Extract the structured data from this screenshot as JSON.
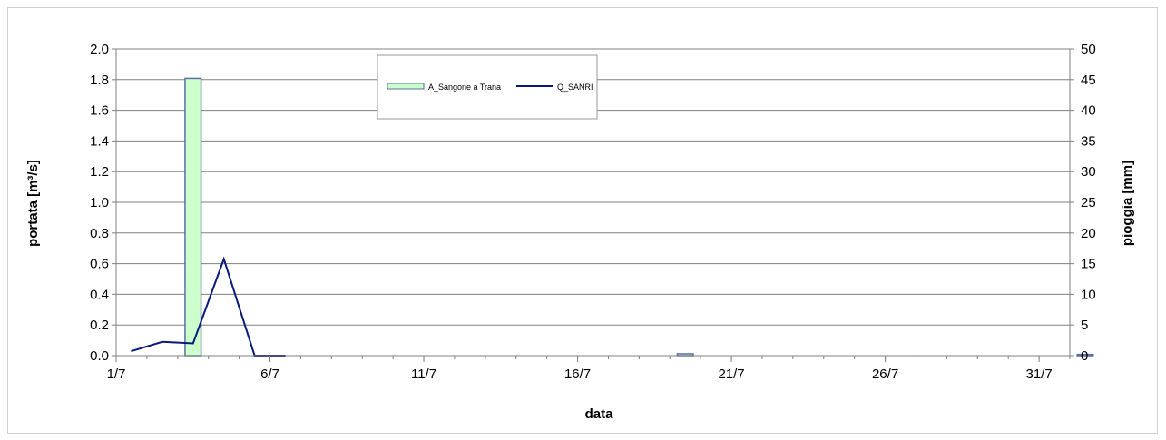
{
  "chart_data": {
    "type": "bar+line",
    "x_ticks": [
      "1/7",
      "6/7",
      "11/7",
      "16/7",
      "21/7",
      "26/7",
      "31/7"
    ],
    "xlabel": "data",
    "ylabel_left": "portata [m³/s]",
    "ylabel_right": "pioggia [mm]",
    "ylim_left": [
      0,
      2.0
    ],
    "ylim_right": [
      0,
      50
    ],
    "y_ticks_left": [
      "0.0",
      "0.2",
      "0.4",
      "0.6",
      "0.8",
      "1.0",
      "1.2",
      "1.4",
      "1.6",
      "1.8",
      "2.0"
    ],
    "y_ticks_right": [
      "0",
      "5",
      "10",
      "15",
      "20",
      "25",
      "30",
      "35",
      "40",
      "45",
      "50"
    ],
    "x_domain_days": [
      1,
      32
    ],
    "bar_series": {
      "name": "A_Sangone a Trana",
      "axis": "right",
      "color": "#ccffcc",
      "edge": "#5a6ea0",
      "points": [
        {
          "day": 3.5,
          "value": 45.2
        },
        {
          "day": 19.5,
          "value": 0.3
        },
        {
          "day": 32.5,
          "value": 0.2
        }
      ]
    },
    "line_series": {
      "name": "Q_SANRI",
      "axis": "left",
      "color": "#0a1a7a",
      "points": [
        {
          "day": 1.5,
          "value": 0.03
        },
        {
          "day": 2.5,
          "value": 0.09
        },
        {
          "day": 3.5,
          "value": 0.08
        },
        {
          "day": 4.5,
          "value": 0.63
        },
        {
          "day": 5.5,
          "value": 0.0
        },
        {
          "day": 6.5,
          "value": 0.0
        }
      ]
    },
    "grid": true,
    "legend_position": "top-center"
  }
}
